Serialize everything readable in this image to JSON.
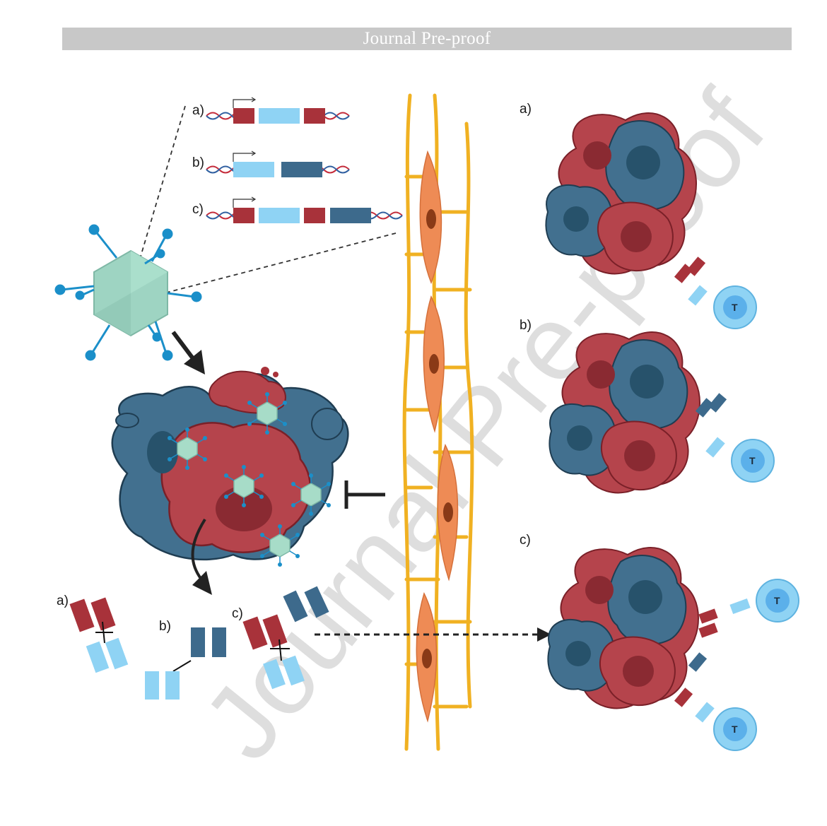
{
  "header": {
    "banner_text": "Journal Pre-proof"
  },
  "watermark": {
    "text": "Journal Pre-proof"
  },
  "constructs": {
    "labels": [
      "a)",
      "b)",
      "c)"
    ]
  },
  "tumor_panels": {
    "labels": [
      "a)",
      "b)",
      "c)"
    ]
  },
  "antibodies": {
    "labels": [
      "a)",
      "b)",
      "c)"
    ]
  },
  "t_cell": {
    "letter": "T"
  },
  "colors": {
    "red": "#a8323a",
    "dark_blue": "#3d6a8c",
    "light_blue": "#8fd3f4",
    "capsid": "#9ed4c2",
    "orange": "#ee8b55",
    "yellow": "#f0b122"
  }
}
